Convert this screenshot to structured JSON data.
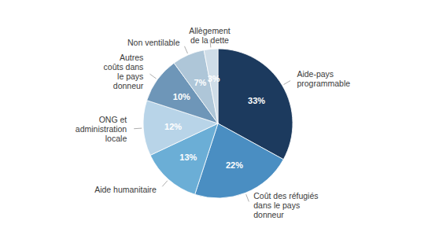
{
  "chart_data": {
    "type": "pie",
    "categories": [
      "Aide-pays\nprogrammable",
      "Coût des réfugiés\ndans le pays\ndonneur",
      "Aide humanitaire",
      "ONG et\nadministration\nlocale",
      "Autres\ncoûts dans\nle pays\ndonneur",
      "Non ventilable",
      "Allègement\nde la dette"
    ],
    "values": [
      33,
      22,
      13,
      12,
      10,
      7,
      3
    ],
    "value_labels": [
      "33%",
      "22%",
      "13%",
      "12%",
      "10%",
      "7%",
      "3%"
    ],
    "colors": [
      "#1c3a5e",
      "#4a8ec2",
      "#6baed6",
      "#b8d4e8",
      "#6e96b8",
      "#aec6d8",
      "#cfdde8"
    ],
    "data_labels": true
  }
}
